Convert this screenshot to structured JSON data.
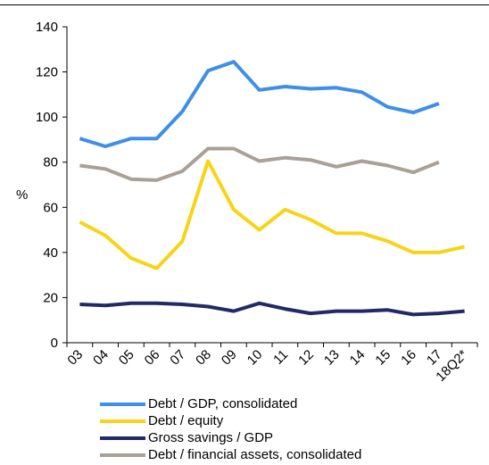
{
  "chart_data": {
    "type": "line",
    "title": "",
    "xlabel": "",
    "ylabel": "%",
    "ylim": [
      0,
      140
    ],
    "yticks": [
      0,
      20,
      40,
      60,
      80,
      100,
      120,
      140
    ],
    "categories": [
      "03",
      "04",
      "05",
      "06",
      "07",
      "08",
      "09",
      "10",
      "11",
      "12",
      "13",
      "14",
      "15",
      "16",
      "17",
      "18Q2*"
    ],
    "grid": false,
    "legend_position": "bottom",
    "series": [
      {
        "name": "Debt / GDP, consolidated",
        "color": "#3d8fe8",
        "values": [
          90.5,
          87,
          90.5,
          90.5,
          102.5,
          120.5,
          124.5,
          112,
          113.5,
          112.5,
          113,
          111,
          104.5,
          102,
          106,
          null
        ]
      },
      {
        "name": "Debt / equity",
        "color": "#f7d417",
        "values": [
          53.5,
          47.5,
          37.5,
          33,
          45,
          80.5,
          59,
          50,
          59,
          54.5,
          48.5,
          48.5,
          45,
          40,
          40,
          42.5
        ]
      },
      {
        "name": "Gross savings / GDP",
        "color": "#222a66",
        "values": [
          17,
          16.5,
          17.5,
          17.5,
          17,
          16,
          14,
          17.5,
          15,
          13,
          14,
          14,
          14.5,
          12.5,
          13,
          14
        ]
      },
      {
        "name": "Debt / financial assets, consolidated",
        "color": "#a9a098",
        "values": [
          78.5,
          77,
          72.5,
          72,
          76,
          86,
          86,
          80.5,
          82,
          81,
          78,
          80.5,
          78.5,
          75.5,
          80,
          null
        ]
      }
    ]
  }
}
